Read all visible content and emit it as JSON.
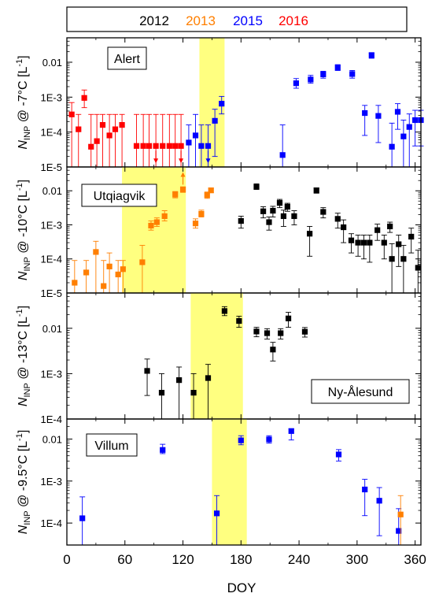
{
  "legend": [
    {
      "label": "2012",
      "color": "#000000"
    },
    {
      "label": "2013",
      "color": "#ff7f00"
    },
    {
      "label": "2015",
      "color": "#0000ff"
    },
    {
      "label": "2016",
      "color": "#ff0000"
    }
  ],
  "colors": {
    "2012": "#000000",
    "2013": "#ff7f00",
    "2015": "#0000ff",
    "2016": "#ff0000",
    "highlight": "#ffff80"
  },
  "chart_data": {
    "type": "scatter",
    "xlabel": "DOY",
    "x_ticks": [
      "0",
      "60",
      "120",
      "180",
      "240",
      "300",
      "360"
    ],
    "xlim": [
      0,
      366
    ],
    "panels": [
      {
        "site": "Alert",
        "ylabel_html": "N_INP @ -7°C [L^-1]",
        "ylim": [
          1e-05,
          0.05
        ],
        "y_ticks": [
          "1E-5",
          "1E-4",
          "1E-3",
          "0.01"
        ],
        "yscale": "log",
        "shaded_doy": [
          137,
          163
        ],
        "points": [
          {
            "doy": 5,
            "y": 0.00032,
            "lo": 1e-05,
            "hi": 0.0007,
            "year": "2016"
          },
          {
            "doy": 12,
            "y": 0.00012,
            "lo": 1e-05,
            "hi": 0.00032,
            "year": "2016"
          },
          {
            "doy": 18,
            "y": 0.00095,
            "lo": 0.0005,
            "hi": 0.0016,
            "year": "2016"
          },
          {
            "doy": 25,
            "y": 3.8e-05,
            "lo": 1e-05,
            "hi": 0.00032,
            "year": "2016"
          },
          {
            "doy": 31,
            "y": 5.5e-05,
            "lo": 1e-05,
            "hi": 0.00032,
            "year": "2016"
          },
          {
            "doy": 37,
            "y": 0.00016,
            "lo": 1e-05,
            "hi": 0.00032,
            "year": "2016"
          },
          {
            "doy": 44,
            "y": 8e-05,
            "lo": 1e-05,
            "hi": 0.00032,
            "year": "2016"
          },
          {
            "doy": 50,
            "y": 0.00012,
            "lo": 1e-05,
            "hi": 0.00032,
            "year": "2016"
          },
          {
            "doy": 57,
            "y": 0.00016,
            "lo": 1e-05,
            "hi": 0.00032,
            "year": "2016"
          },
          {
            "doy": 72,
            "y": 4e-05,
            "lo": 1e-05,
            "hi": 0.00032,
            "year": "2016"
          },
          {
            "doy": 79,
            "y": 4e-05,
            "lo": 1e-05,
            "hi": 0.00032,
            "year": "2016"
          },
          {
            "doy": 85,
            "y": 4e-05,
            "lo": 1e-05,
            "hi": 0.00032,
            "year": "2016"
          },
          {
            "doy": 92,
            "y": 4e-05,
            "lo": 1e-05,
            "hi": 0.00032,
            "year": "2016",
            "arrow": "down"
          },
          {
            "doy": 99,
            "y": 4e-05,
            "lo": 1e-05,
            "hi": 0.00032,
            "year": "2016"
          },
          {
            "doy": 106,
            "y": 4e-05,
            "lo": 1e-05,
            "hi": 0.00032,
            "year": "2016"
          },
          {
            "doy": 112,
            "y": 4e-05,
            "lo": 1e-05,
            "hi": 0.00032,
            "year": "2016"
          },
          {
            "doy": 118,
            "y": 4e-05,
            "lo": 1e-05,
            "hi": 0.00032,
            "year": "2016",
            "arrow": "down"
          },
          {
            "doy": 126,
            "y": 5e-05,
            "lo": 1e-05,
            "hi": 0.00016,
            "year": "2015"
          },
          {
            "doy": 133,
            "y": 8e-05,
            "lo": 1e-05,
            "hi": 0.00032,
            "year": "2015"
          },
          {
            "doy": 139,
            "y": 4e-05,
            "lo": 1e-05,
            "hi": 0.00016,
            "year": "2015"
          },
          {
            "doy": 146,
            "y": 4e-05,
            "lo": 1e-05,
            "hi": 0.00016,
            "year": "2015",
            "arrow": "down"
          },
          {
            "doy": 153,
            "y": 0.00021,
            "lo": 2e-05,
            "hi": 0.00045,
            "year": "2015"
          },
          {
            "doy": 160,
            "y": 0.00065,
            "lo": 0.00033,
            "hi": 0.00105,
            "year": "2015"
          },
          {
            "doy": 223,
            "y": 2.2e-05,
            "lo": 1e-05,
            "hi": 0.00016,
            "year": "2015"
          },
          {
            "doy": 237,
            "y": 0.0025,
            "lo": 0.0018,
            "hi": 0.0034,
            "year": "2015"
          },
          {
            "doy": 252,
            "y": 0.0032,
            "lo": 0.0025,
            "hi": 0.0042,
            "year": "2015"
          },
          {
            "doy": 265,
            "y": 0.0045,
            "lo": 0.0035,
            "hi": 0.0055,
            "year": "2015"
          },
          {
            "doy": 280,
            "y": 0.007,
            "lo": 0.0058,
            "hi": 0.0085,
            "year": "2015"
          },
          {
            "doy": 295,
            "y": 0.0046,
            "lo": 0.0035,
            "hi": 0.0058,
            "year": "2015"
          },
          {
            "doy": 308,
            "y": 0.00035,
            "lo": 8e-05,
            "hi": 0.00058,
            "year": "2015"
          },
          {
            "doy": 315,
            "y": 0.016,
            "lo": 0.013,
            "hi": 0.018,
            "year": "2015"
          },
          {
            "doy": 322,
            "y": 0.00029,
            "lo": 5e-05,
            "hi": 0.00058,
            "year": "2015"
          },
          {
            "doy": 336,
            "y": 3.8e-05,
            "lo": 1e-05,
            "hi": 0.00018,
            "year": "2015"
          },
          {
            "doy": 342,
            "y": 0.00038,
            "lo": 0.00012,
            "hi": 0.00065,
            "year": "2015"
          },
          {
            "doy": 348,
            "y": 7.5e-05,
            "lo": 1e-05,
            "hi": 0.00022,
            "year": "2015"
          },
          {
            "doy": 354,
            "y": 0.00014,
            "lo": 1e-05,
            "hi": 0.00033,
            "year": "2015"
          },
          {
            "doy": 360,
            "y": 0.00022,
            "lo": 4e-05,
            "hi": 0.00042,
            "year": "2015"
          },
          {
            "doy": 366,
            "y": 0.00022,
            "lo": 4e-05,
            "hi": 0.00042,
            "year": "2015"
          }
        ]
      },
      {
        "site": "Utqiagvik",
        "ylabel_html": "N_INP @ -10°C [L^-1]",
        "ylim": [
          1e-05,
          0.05
        ],
        "y_ticks": [
          "1E-5",
          "1E-4",
          "1E-3",
          "0.01"
        ],
        "yscale": "log",
        "shaded_doy": [
          57,
          123
        ],
        "points": [
          {
            "doy": 8,
            "y": 2e-05,
            "lo": 1e-05,
            "hi": 9e-05,
            "year": "2013"
          },
          {
            "doy": 20,
            "y": 4e-05,
            "lo": 1e-05,
            "hi": 9e-05,
            "year": "2013"
          },
          {
            "doy": 30,
            "y": 0.00016,
            "lo": 1e-05,
            "hi": 0.00033,
            "year": "2013"
          },
          {
            "doy": 38,
            "y": 1.6e-05,
            "lo": 1e-05,
            "hi": 9e-05,
            "year": "2013"
          },
          {
            "doy": 44,
            "y": 6e-05,
            "lo": 1e-05,
            "hi": 0.00015,
            "year": "2013"
          },
          {
            "doy": 53,
            "y": 3.5e-05,
            "lo": 1e-05,
            "hi": 9e-05,
            "year": "2013"
          },
          {
            "doy": 58,
            "y": 5e-05,
            "lo": 1e-05,
            "hi": 9e-05,
            "year": "2013"
          },
          {
            "doy": 78,
            "y": 8e-05,
            "lo": 1e-05,
            "hi": 0.00025,
            "year": "2013"
          },
          {
            "doy": 87,
            "y": 0.00095,
            "lo": 0.0007,
            "hi": 0.0013,
            "year": "2013"
          },
          {
            "doy": 93,
            "y": 0.0012,
            "lo": 0.0009,
            "hi": 0.0016,
            "year": "2013"
          },
          {
            "doy": 101,
            "y": 0.0018,
            "lo": 0.0013,
            "hi": 0.0026,
            "year": "2013"
          },
          {
            "doy": 112,
            "y": 0.0078,
            "lo": 0.0062,
            "hi": 0.0095,
            "year": "2013"
          },
          {
            "doy": 120,
            "y": 0.011,
            "lo": 0.009,
            "hi": 0.013,
            "year": "2013",
            "arrow": "up"
          },
          {
            "doy": 133,
            "y": 0.0011,
            "lo": 0.0008,
            "hi": 0.0015,
            "year": "2013"
          },
          {
            "doy": 139,
            "y": 0.0021,
            "lo": 0.0017,
            "hi": 0.0027,
            "year": "2013"
          },
          {
            "doy": 145,
            "y": 0.0075,
            "lo": 0.006,
            "hi": 0.0092,
            "year": "2013"
          },
          {
            "doy": 149,
            "y": 0.0103,
            "lo": 0.0088,
            "hi": 0.012,
            "year": "2013"
          },
          {
            "doy": 180,
            "y": 0.0013,
            "lo": 0.0008,
            "hi": 0.0018,
            "year": "2012"
          },
          {
            "doy": 196,
            "y": 0.013,
            "lo": 0.011,
            "hi": 0.016,
            "year": "2012"
          },
          {
            "doy": 203,
            "y": 0.0025,
            "lo": 0.0016,
            "hi": 0.0034,
            "year": "2012"
          },
          {
            "doy": 209,
            "y": 0.0012,
            "lo": 0.0007,
            "hi": 0.0017,
            "year": "2012"
          },
          {
            "doy": 213,
            "y": 0.0026,
            "lo": 0.0017,
            "hi": 0.0035,
            "year": "2012"
          },
          {
            "doy": 220,
            "y": 0.0044,
            "lo": 0.0032,
            "hi": 0.0056,
            "year": "2012"
          },
          {
            "doy": 224,
            "y": 0.0018,
            "lo": 0.0009,
            "hi": 0.0027,
            "year": "2012"
          },
          {
            "doy": 228,
            "y": 0.0034,
            "lo": 0.0025,
            "hi": 0.0043,
            "year": "2012"
          },
          {
            "doy": 235,
            "y": 0.0018,
            "lo": 0.001,
            "hi": 0.0026,
            "year": "2012"
          },
          {
            "doy": 251,
            "y": 0.00055,
            "lo": 0.00012,
            "hi": 0.0009,
            "year": "2012"
          },
          {
            "doy": 258,
            "y": 0.0103,
            "lo": 0.0085,
            "hi": 0.0121,
            "year": "2012"
          },
          {
            "doy": 265,
            "y": 0.0024,
            "lo": 0.0016,
            "hi": 0.0032,
            "year": "2012"
          },
          {
            "doy": 280,
            "y": 0.0015,
            "lo": 0.0008,
            "hi": 0.0022,
            "year": "2012"
          },
          {
            "doy": 286,
            "y": 0.00085,
            "lo": 0.0003,
            "hi": 0.0014,
            "year": "2012"
          },
          {
            "doy": 294,
            "y": 0.00035,
            "lo": 0.00015,
            "hi": 0.00055,
            "year": "2012"
          },
          {
            "doy": 301,
            "y": 0.0003,
            "lo": 0.00012,
            "hi": 0.0005,
            "year": "2012"
          },
          {
            "doy": 307,
            "y": 0.0003,
            "lo": 0.0001,
            "hi": 0.0005,
            "year": "2012"
          },
          {
            "doy": 313,
            "y": 0.0003,
            "lo": 8e-05,
            "hi": 0.0005,
            "year": "2012"
          },
          {
            "doy": 321,
            "y": 0.0007,
            "lo": 0.00035,
            "hi": 0.00105,
            "year": "2012"
          },
          {
            "doy": 328,
            "y": 0.0003,
            "lo": 0.0001,
            "hi": 0.0005,
            "year": "2012"
          },
          {
            "doy": 334,
            "y": 0.0009,
            "lo": 0.0006,
            "hi": 0.0012,
            "year": "2012"
          },
          {
            "doy": 336,
            "y": 0.0001,
            "lo": 1e-05,
            "hi": 0.00028,
            "year": "2012"
          },
          {
            "doy": 343,
            "y": 0.00027,
            "lo": 6e-05,
            "hi": 0.0005,
            "year": "2012"
          },
          {
            "doy": 348,
            "y": 0.0001,
            "lo": 1e-05,
            "hi": 0.00025,
            "year": "2012"
          },
          {
            "doy": 356,
            "y": 0.00045,
            "lo": 0.00015,
            "hi": 0.0008,
            "year": "2012"
          },
          {
            "doy": 363,
            "y": 5.5e-05,
            "lo": 1e-05,
            "hi": 0.00018,
            "year": "2012"
          }
        ]
      },
      {
        "site": "Ny-Ålesund",
        "ylabel_html": "N_INP @ -13°C [L^-1]",
        "ylim": [
          0.0001,
          0.06
        ],
        "y_ticks": [
          "1E-4",
          "1E-3",
          "0.01"
        ],
        "yscale": "log",
        "shaded_doy": [
          128,
          182
        ],
        "points": [
          {
            "doy": 83,
            "y": 0.00115,
            "lo": 0.00033,
            "hi": 0.0021,
            "year": "2012"
          },
          {
            "doy": 98,
            "y": 0.00038,
            "lo": 0.0001,
            "hi": 0.001,
            "year": "2012"
          },
          {
            "doy": 116,
            "y": 0.00072,
            "lo": 0.0001,
            "hi": 0.0014,
            "year": "2012"
          },
          {
            "doy": 131,
            "y": 0.00038,
            "lo": 0.0001,
            "hi": 0.001,
            "year": "2012"
          },
          {
            "doy": 146,
            "y": 0.0008,
            "lo": 0.0001,
            "hi": 0.0016,
            "year": "2012"
          },
          {
            "doy": 163,
            "y": 0.024,
            "lo": 0.019,
            "hi": 0.03,
            "year": "2012"
          },
          {
            "doy": 178,
            "y": 0.0145,
            "lo": 0.0105,
            "hi": 0.0185,
            "year": "2012"
          },
          {
            "doy": 196,
            "y": 0.0085,
            "lo": 0.0065,
            "hi": 0.0105,
            "year": "2012"
          },
          {
            "doy": 207,
            "y": 0.0078,
            "lo": 0.0058,
            "hi": 0.0098,
            "year": "2012"
          },
          {
            "doy": 213,
            "y": 0.0034,
            "lo": 0.0019,
            "hi": 0.0049,
            "year": "2012"
          },
          {
            "doy": 221,
            "y": 0.0078,
            "lo": 0.0058,
            "hi": 0.0098,
            "year": "2012"
          },
          {
            "doy": 229,
            "y": 0.0165,
            "lo": 0.0105,
            "hi": 0.0225,
            "year": "2012"
          },
          {
            "doy": 246,
            "y": 0.0084,
            "lo": 0.0064,
            "hi": 0.0104,
            "year": "2012"
          }
        ]
      },
      {
        "site": "Villum",
        "ylabel_html": "N_INP @ -9.5°C [L^-1]",
        "ylim": [
          3e-05,
          0.03
        ],
        "y_ticks": [
          "1E-4",
          "1E-3",
          "0.01"
        ],
        "yscale": "log",
        "shaded_doy": [
          150,
          186
        ],
        "points": [
          {
            "doy": 16,
            "y": 0.00013,
            "lo": 3e-05,
            "hi": 0.00042,
            "year": "2015"
          },
          {
            "doy": 99,
            "y": 0.0055,
            "lo": 0.0045,
            "hi": 0.0075,
            "year": "2015"
          },
          {
            "doy": 155,
            "y": 0.00017,
            "lo": 3e-05,
            "hi": 0.00045,
            "year": "2015"
          },
          {
            "doy": 180,
            "y": 0.0093,
            "lo": 0.0073,
            "hi": 0.012,
            "year": "2015"
          },
          {
            "doy": 209,
            "y": 0.0098,
            "lo": 0.008,
            "hi": 0.012,
            "year": "2015"
          },
          {
            "doy": 232,
            "y": 0.0155,
            "lo": 0.0095,
            "hi": 0.0175,
            "year": "2015"
          },
          {
            "doy": 281,
            "y": 0.0043,
            "lo": 0.003,
            "hi": 0.0056,
            "year": "2015"
          },
          {
            "doy": 308,
            "y": 0.00063,
            "lo": 0.00015,
            "hi": 0.0011,
            "year": "2015"
          },
          {
            "doy": 323,
            "y": 0.00034,
            "lo": 5e-05,
            "hi": 0.0007,
            "year": "2015"
          },
          {
            "doy": 343,
            "y": 6.5e-05,
            "lo": 3e-05,
            "hi": 0.00022,
            "year": "2015"
          },
          {
            "doy": 345,
            "y": 0.00016,
            "lo": 3e-05,
            "hi": 0.00045,
            "year": "2013"
          }
        ]
      }
    ]
  }
}
